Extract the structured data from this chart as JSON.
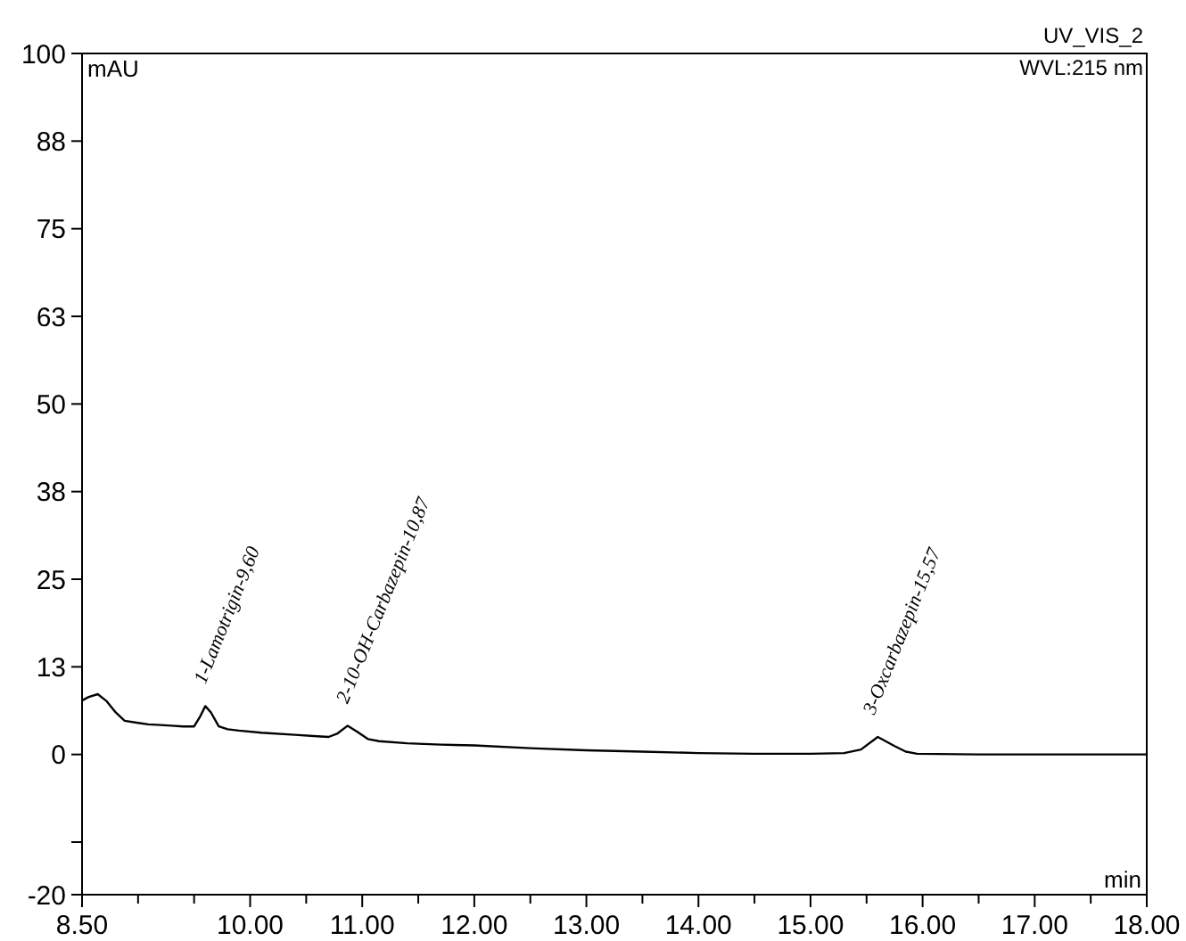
{
  "chart_data": {
    "type": "line",
    "title": "UV_VIS_2",
    "subtitle": "WVL:215 nm",
    "xlabel": "min",
    "ylabel": "mAU",
    "xlim": [
      8.5,
      18
    ],
    "xticks": [
      {
        "value": 8.5,
        "label": "8.50"
      },
      {
        "value": 9,
        "label": null
      },
      {
        "value": 9.5,
        "label": null
      },
      {
        "value": 10,
        "label": "10.00"
      },
      {
        "value": 10.5,
        "label": null
      },
      {
        "value": 11,
        "label": "11.00"
      },
      {
        "value": 11.5,
        "label": null
      },
      {
        "value": 12,
        "label": "12.00"
      },
      {
        "value": 12.5,
        "label": null
      },
      {
        "value": 13,
        "label": "13.00"
      },
      {
        "value": 13.5,
        "label": null
      },
      {
        "value": 14,
        "label": "14.00"
      },
      {
        "value": 14.5,
        "label": null
      },
      {
        "value": 15,
        "label": "15.00"
      },
      {
        "value": 15.5,
        "label": null
      },
      {
        "value": 16,
        "label": "16.00"
      },
      {
        "value": 16.5,
        "label": null
      },
      {
        "value": 17,
        "label": "17.00"
      },
      {
        "value": 17.5,
        "label": null
      },
      {
        "value": 18,
        "label": "18.00"
      }
    ],
    "ylim": [
      -20,
      100
    ],
    "yticks": [
      -20,
      {
        "value": -12.5,
        "label": null
      },
      0,
      {
        "value": 12.5,
        "label": "13"
      },
      25,
      {
        "value": 37.5,
        "label": "38"
      },
      50,
      {
        "value": 62.5,
        "label": "63"
      },
      75,
      {
        "value": 87.5,
        "label": "88"
      },
      100
    ],
    "grid": false,
    "marker": "none",
    "line_style": "solid",
    "series": [
      {
        "color": "#000000",
        "x": [
          8.5,
          8.56,
          8.64,
          8.72,
          8.8,
          8.88,
          9.0,
          9.09,
          9.2,
          9.3,
          9.4,
          9.5,
          9.55,
          9.6,
          9.65,
          9.72,
          9.8,
          9.9,
          10.1,
          10.4,
          10.6,
          10.7,
          10.78,
          10.87,
          10.95,
          11.05,
          11.15,
          11.4,
          11.7,
          12.0,
          12.5,
          13.0,
          13.5,
          14.0,
          14.5,
          15.0,
          15.3,
          15.45,
          15.6,
          15.75,
          15.85,
          15.95,
          16.5,
          17.0,
          17.5,
          18.0
        ],
        "values": [
          7.7,
          8.2,
          8.6,
          7.6,
          6.0,
          4.8,
          4.5,
          4.3,
          4.2,
          4.1,
          4.0,
          4.0,
          5.3,
          6.9,
          6.0,
          4.0,
          3.6,
          3.4,
          3.1,
          2.8,
          2.6,
          2.5,
          3.0,
          4.1,
          3.3,
          2.2,
          1.9,
          1.6,
          1.4,
          1.3,
          0.9,
          0.6,
          0.4,
          0.2,
          0.1,
          0.1,
          0.2,
          0.7,
          2.5,
          1.2,
          0.4,
          0.1,
          0.0,
          0.0,
          0.0,
          0.0
        ]
      }
    ],
    "annotations": [
      {
        "text": "1-Lamotrigin-9,60",
        "x": 9.6,
        "y": 6.9
      },
      {
        "text": "2-10-OH-Carbazepin-10,87",
        "x": 10.87,
        "y": 4.1
      },
      {
        "text": "3-Oxcarbazepin-15,57",
        "x": 15.57,
        "y": 2.5
      }
    ]
  }
}
